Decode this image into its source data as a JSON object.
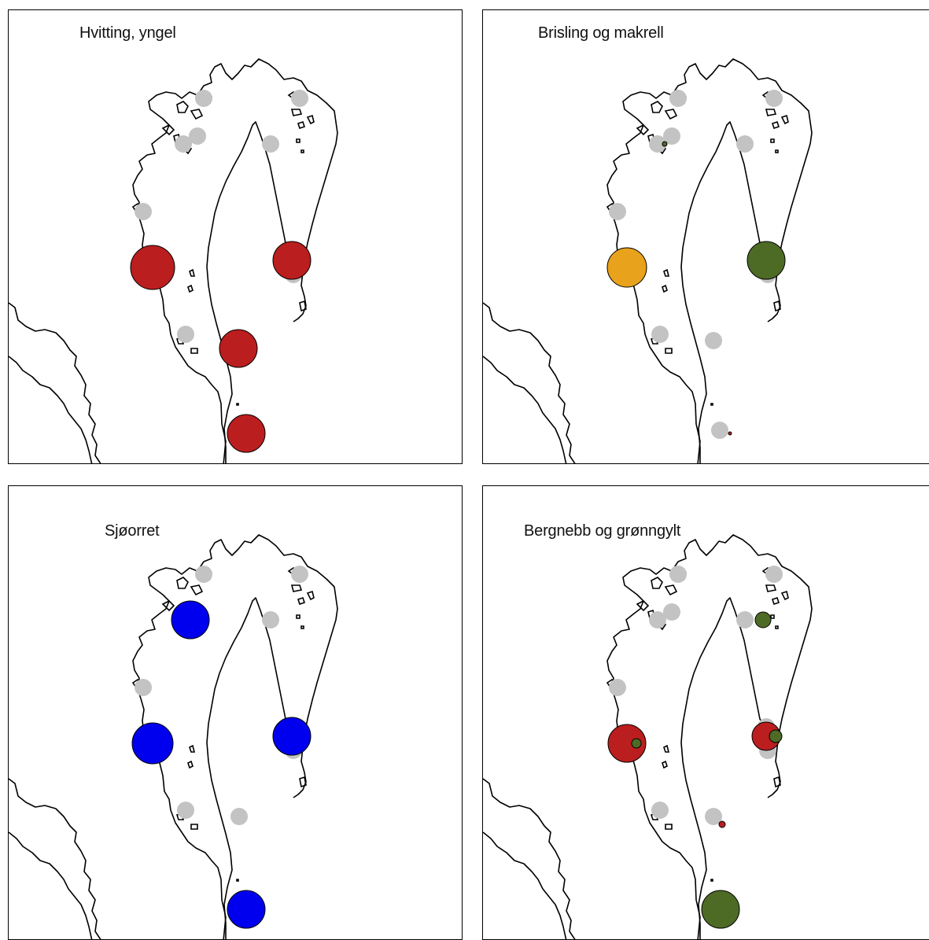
{
  "colors": {
    "empty": "#c3c3c3",
    "red": "#bb1e1e",
    "blue": "#0000ee",
    "yellow": "#e8a21b",
    "green": "#4e6b26",
    "coast": "#000000"
  },
  "panels": [
    {
      "title": "Hvitting, yngel",
      "markers": [
        {
          "station": 1,
          "color": "red",
          "size": 28
        },
        {
          "station": 2,
          "color": "red",
          "size": 24
        },
        {
          "station": 3,
          "color": "red",
          "size": 24
        },
        {
          "station": 4,
          "color": "red",
          "size": 24
        }
      ]
    },
    {
      "title": "Brisling og makrell",
      "markers": [
        {
          "station": 0,
          "color": "green",
          "size": 3
        },
        {
          "station": 1,
          "color": "yellow",
          "size": 25
        },
        {
          "station": 2,
          "color": "green",
          "size": 24
        },
        {
          "station": 4,
          "color": "red",
          "size": 2
        }
      ]
    },
    {
      "title": "Sjøorret",
      "markers": [
        {
          "station": 0,
          "color": "blue",
          "size": 24
        },
        {
          "station": 1,
          "color": "blue",
          "size": 26
        },
        {
          "station": 2,
          "color": "blue",
          "size": 24
        },
        {
          "station": 4,
          "color": "blue",
          "size": 24
        }
      ]
    },
    {
      "title": "Bergnebb og grønngylt",
      "markers": [
        {
          "station": 1,
          "color": "red",
          "size": 24
        },
        {
          "station": 2,
          "color": "red",
          "size": 18
        },
        {
          "station": 2,
          "color": "green",
          "size": 8
        },
        {
          "station": 1,
          "color": "green",
          "size": 6
        },
        {
          "station": 3,
          "color": "red",
          "size": 4
        },
        {
          "station": 4,
          "color": "green",
          "size": 24
        },
        {
          "station": 5,
          "color": "green",
          "size": 10
        }
      ]
    }
  ]
}
